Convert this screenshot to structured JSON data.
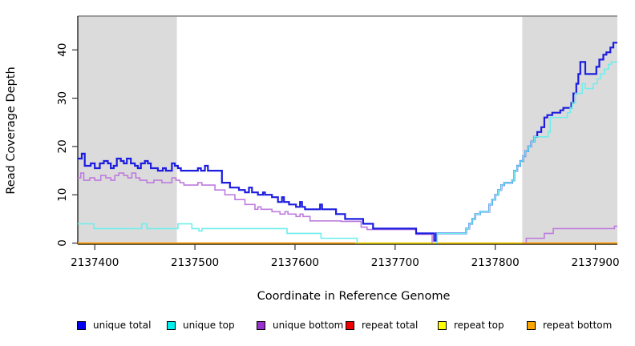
{
  "chart_data": {
    "type": "line",
    "subtype": "step-after-coverage-plot",
    "title": "",
    "xlabel": "Coordinate in Reference Genome",
    "ylabel": "Read Coverage Depth",
    "xlim": [
      2137383,
      2137922
    ],
    "ylim": [
      0,
      47
    ],
    "x_ticks": [
      2137400,
      2137500,
      2137600,
      2137700,
      2137800,
      2137900
    ],
    "y_ticks": [
      0,
      10,
      20,
      30,
      40
    ],
    "grid": false,
    "background_color": "#FFFFFF",
    "shaded_region_color": "#DBDBDB",
    "top_border_color": "#8C8C8C",
    "shaded_regions": [
      {
        "name": "left-repeat-region",
        "from": 2137383,
        "to": 2137482
      },
      {
        "name": "right-repeat-region",
        "from": 2137827,
        "to": 2137922
      }
    ],
    "zero_line_segments": [
      {
        "from": 2137660,
        "to": 2137741,
        "color": "#8FCE8F"
      },
      {
        "from": 2137741,
        "to": 2137827,
        "color": "#D2486B"
      }
    ],
    "series": [
      {
        "name": "repeat total",
        "color": "#EE0000",
        "width": 1.5,
        "points": [
          [
            2137383,
            0
          ],
          [
            2137922,
            0
          ]
        ]
      },
      {
        "name": "repeat top",
        "color": "#FFFF00",
        "width": 1.5,
        "points": [
          [
            2137383,
            0
          ],
          [
            2137922,
            0
          ]
        ]
      },
      {
        "name": "unique bottom",
        "color": "#BE7CDE",
        "width": 1.6,
        "points": [
          [
            2137383,
            13.5
          ],
          [
            2137386,
            14.5
          ],
          [
            2137389,
            13
          ],
          [
            2137395,
            13.5
          ],
          [
            2137400,
            13
          ],
          [
            2137406,
            14
          ],
          [
            2137411,
            13.5
          ],
          [
            2137416,
            13
          ],
          [
            2137420,
            14
          ],
          [
            2137424,
            14.5
          ],
          [
            2137429,
            14
          ],
          [
            2137433,
            13.5
          ],
          [
            2137437,
            14.5
          ],
          [
            2137441,
            13.5
          ],
          [
            2137445,
            13
          ],
          [
            2137452,
            12.5
          ],
          [
            2137459,
            13
          ],
          [
            2137467,
            12.5
          ],
          [
            2137477,
            13.5
          ],
          [
            2137481,
            13
          ],
          [
            2137485,
            12.5
          ],
          [
            2137489,
            12
          ],
          [
            2137503,
            12.5
          ],
          [
            2137507,
            12
          ],
          [
            2137520,
            11
          ],
          [
            2137530,
            10
          ],
          [
            2137540,
            9
          ],
          [
            2137550,
            8
          ],
          [
            2137560,
            7
          ],
          [
            2137563,
            7.5
          ],
          [
            2137566,
            7
          ],
          [
            2137577,
            6.5
          ],
          [
            2137585,
            6
          ],
          [
            2137590,
            6.5
          ],
          [
            2137593,
            6
          ],
          [
            2137601,
            5.5
          ],
          [
            2137605,
            6
          ],
          [
            2137608,
            5.5
          ],
          [
            2137615,
            4.6
          ],
          [
            2137646,
            4.5
          ],
          [
            2137666,
            3.3
          ],
          [
            2137672,
            2.8
          ],
          [
            2137721,
            1.8
          ],
          [
            2137737,
            0
          ],
          [
            2137739,
            null
          ],
          [
            2137830,
            0
          ],
          [
            2137831,
            1
          ],
          [
            2137849,
            2
          ],
          [
            2137858,
            3
          ],
          [
            2137919,
            3.5
          ],
          [
            2137922,
            3.5
          ]
        ]
      },
      {
        "name": "unique total",
        "color": "#1C1CE0",
        "width": 2.2,
        "points": [
          [
            2137383,
            17.5
          ],
          [
            2137387,
            18.5
          ],
          [
            2137390,
            16
          ],
          [
            2137396,
            16.5
          ],
          [
            2137400,
            15.5
          ],
          [
            2137405,
            16.5
          ],
          [
            2137409,
            17
          ],
          [
            2137413,
            16.5
          ],
          [
            2137416,
            15.5
          ],
          [
            2137419,
            16
          ],
          [
            2137422,
            17.5
          ],
          [
            2137426,
            17
          ],
          [
            2137429,
            16.5
          ],
          [
            2137432,
            17.5
          ],
          [
            2137436,
            16.5
          ],
          [
            2137440,
            16
          ],
          [
            2137443,
            15.5
          ],
          [
            2137446,
            16.5
          ],
          [
            2137450,
            17
          ],
          [
            2137453,
            16.5
          ],
          [
            2137456,
            15.5
          ],
          [
            2137463,
            15
          ],
          [
            2137468,
            15.5
          ],
          [
            2137471,
            15
          ],
          [
            2137477,
            16.5
          ],
          [
            2137480,
            16
          ],
          [
            2137483,
            15.5
          ],
          [
            2137486,
            15
          ],
          [
            2137503,
            15.5
          ],
          [
            2137506,
            15
          ],
          [
            2137510,
            16
          ],
          [
            2137513,
            15
          ],
          [
            2137527,
            12.5
          ],
          [
            2137535,
            11.5
          ],
          [
            2137544,
            11
          ],
          [
            2137550,
            10.5
          ],
          [
            2137554,
            11.5
          ],
          [
            2137557,
            10.5
          ],
          [
            2137563,
            10
          ],
          [
            2137568,
            10.5
          ],
          [
            2137570,
            10
          ],
          [
            2137577,
            9.5
          ],
          [
            2137583,
            8.5
          ],
          [
            2137587,
            9.5
          ],
          [
            2137589,
            8.5
          ],
          [
            2137594,
            8
          ],
          [
            2137601,
            7.5
          ],
          [
            2137605,
            8.5
          ],
          [
            2137607,
            7.5
          ],
          [
            2137610,
            7
          ],
          [
            2137625,
            8
          ],
          [
            2137627,
            7
          ],
          [
            2137641,
            6
          ],
          [
            2137650,
            5
          ],
          [
            2137668,
            4
          ],
          [
            2137678,
            3
          ],
          [
            2137721,
            2
          ],
          [
            2137739,
            0.5
          ],
          [
            2137741,
            2
          ],
          [
            2137771,
            3
          ],
          [
            2137774,
            4
          ],
          [
            2137777,
            5
          ],
          [
            2137780,
            6
          ],
          [
            2137785,
            6.5
          ],
          [
            2137794,
            8
          ],
          [
            2137797,
            9
          ],
          [
            2137800,
            10
          ],
          [
            2137803,
            11
          ],
          [
            2137806,
            12
          ],
          [
            2137809,
            12.5
          ],
          [
            2137817,
            13
          ],
          [
            2137819,
            15
          ],
          [
            2137822,
            16
          ],
          [
            2137825,
            17
          ],
          [
            2137828,
            18
          ],
          [
            2137830,
            19
          ],
          [
            2137833,
            20
          ],
          [
            2137836,
            21
          ],
          [
            2137839,
            22
          ],
          [
            2137842,
            23
          ],
          [
            2137846,
            24
          ],
          [
            2137849,
            26
          ],
          [
            2137852,
            26.5
          ],
          [
            2137857,
            27
          ],
          [
            2137865,
            27.5
          ],
          [
            2137868,
            28
          ],
          [
            2137876,
            29
          ],
          [
            2137878,
            31
          ],
          [
            2137881,
            33
          ],
          [
            2137883,
            35
          ],
          [
            2137885,
            37.5
          ],
          [
            2137890,
            35
          ],
          [
            2137901,
            36.5
          ],
          [
            2137904,
            38
          ],
          [
            2137908,
            39
          ],
          [
            2137911,
            39.5
          ],
          [
            2137915,
            40.5
          ],
          [
            2137918,
            41.5
          ],
          [
            2137922,
            41.5
          ]
        ]
      },
      {
        "name": "unique top",
        "color": "#70EDED",
        "width": 1.6,
        "points": [
          [
            2137383,
            4
          ],
          [
            2137399,
            3
          ],
          [
            2137447,
            4
          ],
          [
            2137452,
            3
          ],
          [
            2137483,
            4
          ],
          [
            2137497,
            3
          ],
          [
            2137504,
            2.5
          ],
          [
            2137507,
            3
          ],
          [
            2137592,
            2
          ],
          [
            2137626,
            1
          ],
          [
            2137662,
            0
          ],
          [
            2137664,
            null
          ],
          [
            2137741,
            0
          ],
          [
            2137742,
            2
          ],
          [
            2137771,
            3
          ],
          [
            2137774,
            4
          ],
          [
            2137777,
            5
          ],
          [
            2137780,
            6
          ],
          [
            2137785,
            6.5
          ],
          [
            2137794,
            8
          ],
          [
            2137797,
            9
          ],
          [
            2137800,
            10
          ],
          [
            2137803,
            11
          ],
          [
            2137806,
            12
          ],
          [
            2137809,
            12.5
          ],
          [
            2137817,
            13
          ],
          [
            2137819,
            15
          ],
          [
            2137822,
            16
          ],
          [
            2137825,
            17
          ],
          [
            2137828,
            18
          ],
          [
            2137830,
            19
          ],
          [
            2137833,
            20
          ],
          [
            2137836,
            21
          ],
          [
            2137839,
            22
          ],
          [
            2137853,
            23
          ],
          [
            2137855,
            26
          ],
          [
            2137872,
            27
          ],
          [
            2137875,
            28
          ],
          [
            2137877,
            29
          ],
          [
            2137880,
            31
          ],
          [
            2137887,
            33
          ],
          [
            2137890,
            32
          ],
          [
            2137898,
            33
          ],
          [
            2137902,
            34
          ],
          [
            2137905,
            35
          ],
          [
            2137909,
            36
          ],
          [
            2137913,
            37
          ],
          [
            2137916,
            37.5
          ],
          [
            2137922,
            37.5
          ]
        ]
      },
      {
        "name": "repeat bottom",
        "color": "#FFA318",
        "width": 2,
        "points": [
          [
            2137383,
            0
          ],
          [
            2137660,
            0
          ],
          [
            2137661,
            null
          ],
          [
            2137827,
            0
          ],
          [
            2137922,
            0
          ]
        ]
      }
    ],
    "legend": {
      "position": "bottom",
      "entries": [
        {
          "label": "unique total",
          "color": "#0000EE"
        },
        {
          "label": "unique top",
          "color": "#00EEEE"
        },
        {
          "label": "unique bottom",
          "color": "#9932CC"
        },
        {
          "label": "repeat total",
          "color": "#EE0000"
        },
        {
          "label": "repeat top",
          "color": "#FFFF00"
        },
        {
          "label": "repeat bottom",
          "color": "#FFA500"
        }
      ]
    }
  }
}
